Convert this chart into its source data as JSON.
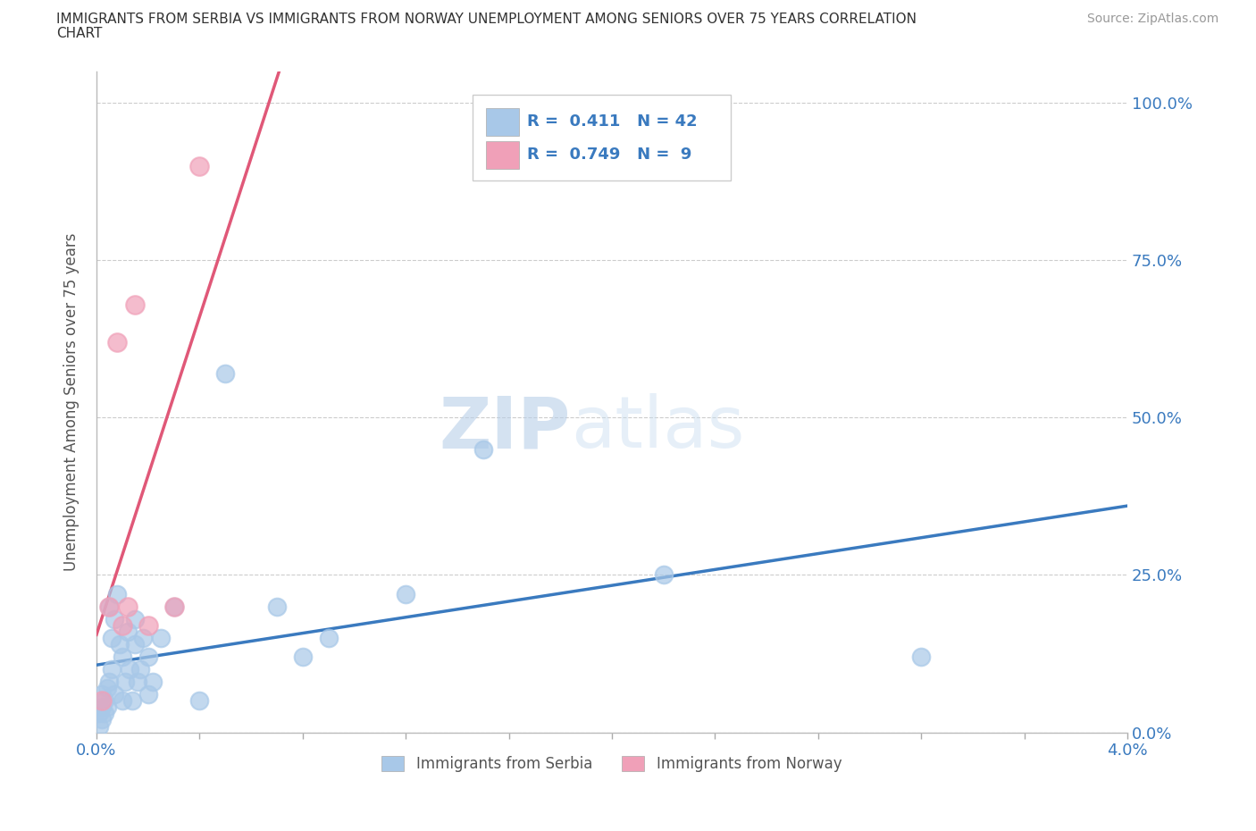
{
  "title_line1": "IMMIGRANTS FROM SERBIA VS IMMIGRANTS FROM NORWAY UNEMPLOYMENT AMONG SENIORS OVER 75 YEARS CORRELATION",
  "title_line2": "CHART",
  "source": "Source: ZipAtlas.com",
  "ylabel": "Unemployment Among Seniors over 75 years",
  "ytick_labels": [
    "0.0%",
    "25.0%",
    "50.0%",
    "75.0%",
    "100.0%"
  ],
  "ytick_values": [
    0.0,
    0.25,
    0.5,
    0.75,
    1.0
  ],
  "xlim": [
    0.0,
    0.04
  ],
  "ylim": [
    0.0,
    1.05
  ],
  "serbia_color": "#a8c8e8",
  "norway_color": "#f0a0b8",
  "serbia_line_color": "#3a7abf",
  "norway_line_color": "#e05878",
  "serbia_R": 0.411,
  "serbia_N": 42,
  "norway_R": 0.749,
  "norway_N": 9,
  "legend_label_serbia": "Immigrants from Serbia",
  "legend_label_norway": "Immigrants from Norway",
  "watermark_zip": "ZIP",
  "watermark_atlas": "atlas",
  "serbia_x": [
    0.0001,
    0.0001,
    0.0002,
    0.0002,
    0.0002,
    0.0003,
    0.0003,
    0.0004,
    0.0004,
    0.0005,
    0.0005,
    0.0006,
    0.0006,
    0.0007,
    0.0007,
    0.0008,
    0.0009,
    0.001,
    0.001,
    0.0011,
    0.0012,
    0.0013,
    0.0014,
    0.0015,
    0.0015,
    0.0016,
    0.0017,
    0.0018,
    0.002,
    0.002,
    0.0022,
    0.0025,
    0.003,
    0.004,
    0.005,
    0.007,
    0.008,
    0.009,
    0.012,
    0.015,
    0.022,
    0.032
  ],
  "serbia_y": [
    0.03,
    0.01,
    0.04,
    0.02,
    0.06,
    0.05,
    0.03,
    0.07,
    0.04,
    0.08,
    0.2,
    0.1,
    0.15,
    0.18,
    0.06,
    0.22,
    0.14,
    0.05,
    0.12,
    0.08,
    0.16,
    0.1,
    0.05,
    0.18,
    0.14,
    0.08,
    0.1,
    0.15,
    0.12,
    0.06,
    0.08,
    0.15,
    0.2,
    0.05,
    0.57,
    0.2,
    0.12,
    0.15,
    0.22,
    0.45,
    0.25,
    0.12
  ],
  "norway_x": [
    0.0002,
    0.0005,
    0.0008,
    0.001,
    0.0012,
    0.0015,
    0.002,
    0.003,
    0.004
  ],
  "norway_y": [
    0.05,
    0.2,
    0.62,
    0.17,
    0.2,
    0.68,
    0.17,
    0.2,
    0.9
  ]
}
